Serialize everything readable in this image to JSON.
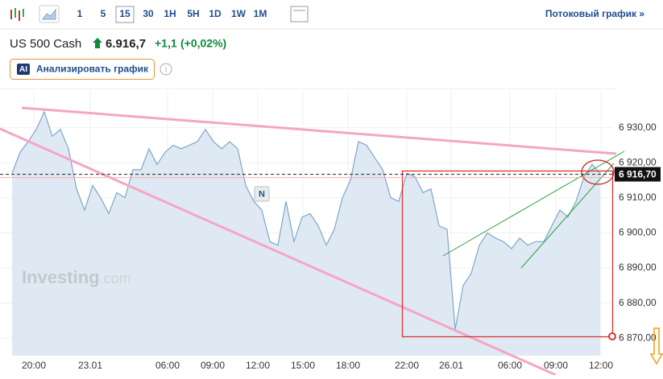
{
  "toolbar": {
    "timeframes": [
      "1",
      "5",
      "15",
      "30",
      "1H",
      "5H",
      "1D",
      "1W",
      "1M"
    ],
    "selected_timeframe": "15",
    "streaming_link": "Потоковый график »"
  },
  "instrument": {
    "name": "US 500 Cash",
    "price": "6.916,7",
    "change": "+1,1",
    "change_percent": "(+0,02%)"
  },
  "analyze_button": {
    "badge": "AI",
    "label": "Анализировать график"
  },
  "chart_data": {
    "type": "area",
    "color": "#7fa6c9",
    "fill": "#dfe9f3",
    "grid": true,
    "watermark": "Investing",
    "watermark_suffix": ".com",
    "event_marker": "N",
    "current_price": {
      "value": 6916.7,
      "label": "6 916,70"
    },
    "x": [
      0,
      1,
      2,
      3,
      4,
      5,
      6,
      7,
      8,
      9,
      10,
      11,
      12,
      13,
      14,
      15,
      16,
      17,
      18,
      19,
      20,
      21,
      22,
      23,
      24,
      25,
      26,
      27,
      28,
      29,
      30,
      31,
      32,
      33,
      34,
      35,
      36,
      37,
      38,
      39,
      40,
      41,
      42,
      43,
      44,
      45,
      46,
      47,
      48,
      49,
      50,
      51,
      52,
      53,
      54,
      55,
      56,
      57,
      58,
      59,
      60,
      61,
      62,
      63,
      64,
      65,
      66,
      67,
      68,
      69,
      70,
      71,
      72,
      73
    ],
    "values": [
      6917,
      6923,
      6926,
      6929.5,
      6934.5,
      6927.5,
      6929.5,
      6924,
      6912.5,
      6906.5,
      6913.5,
      6910,
      6905.5,
      6911.5,
      6910,
      6918,
      6918,
      6924,
      6919.5,
      6923,
      6925,
      6924,
      6925,
      6926,
      6929.5,
      6926,
      6924,
      6926,
      6924,
      6913.5,
      6909,
      6906.5,
      6897.5,
      6896.5,
      6909,
      6897.5,
      6904.5,
      6905.5,
      6902,
      6896.5,
      6901,
      6910,
      6915,
      6926,
      6925,
      6921.5,
      6918,
      6910,
      6909,
      6917,
      6916,
      6911.5,
      6912.5,
      6902,
      6901,
      6872.5,
      6885,
      6888.5,
      6896.5,
      6900,
      6898.5,
      6897.5,
      6895.5,
      6898.5,
      6896.5,
      6897.5,
      6897.5,
      6902,
      6906.5,
      6904.5,
      6909,
      6916,
      6919.5,
      6917
    ],
    "xlim": [
      0,
      74.5
    ],
    "xticks": [
      {
        "value": 2.7,
        "label": "20:00"
      },
      {
        "value": 9.7,
        "label": "23.01"
      },
      {
        "value": 19.3,
        "label": "06:00"
      },
      {
        "value": 24.9,
        "label": "09:00"
      },
      {
        "value": 30.5,
        "label": "12:00"
      },
      {
        "value": 36.1,
        "label": "15:00"
      },
      {
        "value": 41.7,
        "label": "18:00"
      },
      {
        "value": 49,
        "label": "22:00"
      },
      {
        "value": 54.5,
        "label": "26.01"
      },
      {
        "value": 61.8,
        "label": "06:00"
      },
      {
        "value": 67.5,
        "label": "09:00"
      },
      {
        "value": 73.1,
        "label": "12:00"
      }
    ],
    "ylim": [
      6865,
      6940
    ],
    "yticks": [
      {
        "value": 6870,
        "label": "6 870,00"
      },
      {
        "value": 6880,
        "label": "6 880,00"
      },
      {
        "value": 6890,
        "label": "6 890,00"
      },
      {
        "value": 6900,
        "label": "6 900,00"
      },
      {
        "value": 6910,
        "label": "6 910,00"
      },
      {
        "value": 6920,
        "label": "6 920,00"
      },
      {
        "value": 6930,
        "label": "6 930,00"
      }
    ]
  }
}
